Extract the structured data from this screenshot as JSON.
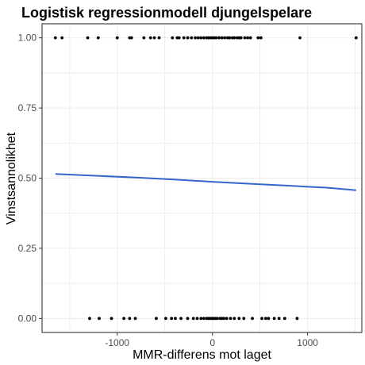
{
  "chart_data": {
    "type": "scatter",
    "title": "Logistisk regressionmodell djungelspelare",
    "xlabel": "MMR-differens mot laget",
    "ylabel": "Vinstsannolikhet",
    "xlim": [
      -1790,
      1570
    ],
    "ylim": [
      -0.05,
      1.05
    ],
    "x_ticks": [
      -1000,
      0,
      1000
    ],
    "x_tick_labels": [
      "-1000",
      "0",
      "1000"
    ],
    "y_ticks": [
      0,
      0.25,
      0.5,
      0.75,
      1
    ],
    "y_tick_labels": [
      "0.00",
      "0.25",
      "0.50",
      "0.75",
      "1.00"
    ],
    "grid": true,
    "points": [
      {
        "y": 1,
        "x": [
          -1650,
          -1580,
          -1310,
          -1200,
          -1000,
          -870,
          -850,
          -720,
          -650,
          -610,
          -560,
          -420,
          -370,
          -350,
          -300,
          -260,
          -220,
          -180,
          -150,
          -120,
          -90,
          -60,
          -40,
          -20,
          0,
          20,
          40,
          70,
          100,
          130,
          160,
          180,
          210,
          230,
          260,
          280,
          300,
          340,
          370,
          400,
          480,
          510,
          920,
          1510
        ]
      },
      {
        "y": 0,
        "x": [
          -1290,
          -1190,
          -1060,
          -930,
          -870,
          -810,
          -590,
          -490,
          -430,
          -390,
          -330,
          -260,
          -200,
          -160,
          -120,
          -90,
          -60,
          -40,
          -20,
          0,
          10,
          30,
          50,
          80,
          100,
          120,
          150,
          190,
          230,
          280,
          330,
          420,
          520,
          560,
          590,
          650,
          700,
          760,
          890
        ]
      }
    ],
    "fit": {
      "name": "",
      "color": "#3366cc",
      "x": [
        -1650,
        -1200,
        -800,
        -400,
        0,
        400,
        800,
        1200,
        1510
      ],
      "y": [
        0.515,
        0.508,
        0.502,
        0.495,
        0.487,
        0.48,
        0.473,
        0.466,
        0.457
      ]
    }
  }
}
